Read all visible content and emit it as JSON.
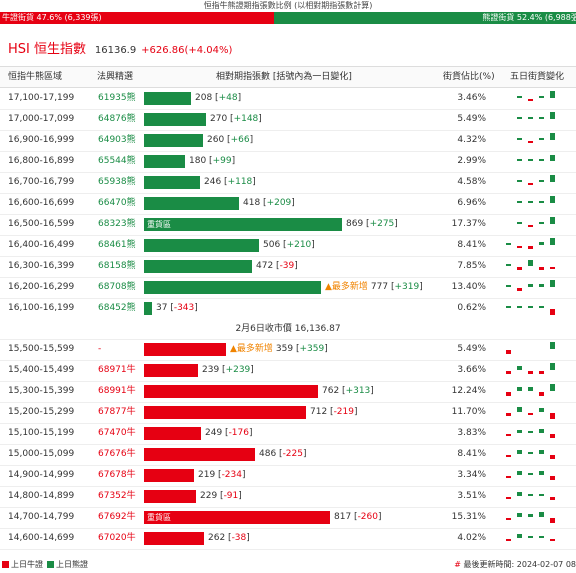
{
  "top_title": "恒指牛熊證期指張數比例 (以相對期指張數計算)",
  "ratio": {
    "bull_label": "牛證街貨 47.6% (6,339張)",
    "bear_label": "熊證街貨 52.4% (6,988張)",
    "bull_pct": 47.6
  },
  "hsi": {
    "name": "HSI 恒生指數",
    "value": "16136.9",
    "change": "+626.86(+4.04%)"
  },
  "headers": {
    "range": "恒指牛熊區域",
    "code": "法興精選",
    "count": "相對期指張數 [括號內為一日變化]",
    "pct": "街貨佔比(%)",
    "five_day": "五日街貨變化"
  },
  "markers": {
    "heavy": "重貨區",
    "new_high": "▲最多新增"
  },
  "bear_rows": [
    {
      "range": "17,100-17,199",
      "code": "61935熊",
      "count": 208,
      "delta": "+48",
      "pct": "3.46%",
      "spark": [
        0,
        0.2,
        -0.3,
        0.3,
        1
      ]
    },
    {
      "range": "17,000-17,099",
      "code": "64876熊",
      "count": 270,
      "delta": "+148",
      "pct": "5.49%",
      "spark": [
        0,
        0.2,
        0.2,
        0.3,
        1
      ]
    },
    {
      "range": "16,900-16,999",
      "code": "64903熊",
      "count": 260,
      "delta": "+66",
      "pct": "4.32%",
      "spark": [
        0,
        0.2,
        -0.2,
        0.2,
        1
      ]
    },
    {
      "range": "16,800-16,899",
      "code": "65544熊",
      "count": 180,
      "delta": "+99",
      "pct": "2.99%",
      "spark": [
        0,
        0.2,
        0.2,
        0.2,
        0.8
      ]
    },
    {
      "range": "16,700-16,799",
      "code": "65938熊",
      "count": 246,
      "delta": "+118",
      "pct": "4.58%",
      "spark": [
        0,
        0.2,
        -0.2,
        0.2,
        1
      ]
    },
    {
      "range": "16,600-16,699",
      "code": "66470熊",
      "count": 418,
      "delta": "+209",
      "pct": "6.96%",
      "spark": [
        0,
        0.2,
        0.2,
        0.3,
        1
      ]
    },
    {
      "range": "16,500-16,599",
      "code": "68323熊",
      "count": 869,
      "delta": "+275",
      "pct": "17.37%",
      "heavy": true,
      "spark": [
        0,
        0.3,
        -0.3,
        0.3,
        1
      ]
    },
    {
      "range": "16,400-16,499",
      "code": "68461熊",
      "count": 506,
      "delta": "+210",
      "pct": "8.41%",
      "spark": [
        0.3,
        -0.3,
        -0.4,
        0.4,
        1
      ]
    },
    {
      "range": "16,300-16,399",
      "code": "68158熊",
      "count": 472,
      "delta": "-39",
      "pct": "7.85%",
      "spark": [
        0.3,
        -0.4,
        0.8,
        -0.4,
        -0.3
      ]
    },
    {
      "range": "16,200-16,299",
      "code": "68708熊",
      "count": 777,
      "delta": "+319",
      "pct": "13.40%",
      "new_high": true,
      "spark": [
        0.3,
        -0.4,
        0.4,
        0.4,
        1
      ]
    },
    {
      "range": "16,100-16,199",
      "code": "68452熊",
      "count": 37,
      "delta": "-343",
      "pct": "0.62%",
      "spark": [
        0.3,
        0.3,
        0.2,
        0.3,
        -0.8
      ]
    }
  ],
  "close_label": "2月6日收市價 16,136.87",
  "bull_rows": [
    {
      "range": "15,500-15,599",
      "code": "-",
      "count": 359,
      "delta": "+359",
      "pct": "5.49%",
      "new_high": true,
      "spark": [
        -0.5,
        0,
        0,
        0,
        1
      ]
    },
    {
      "range": "15,400-15,499",
      "code": "68971牛",
      "count": 239,
      "delta": "+239",
      "pct": "3.66%",
      "spark": [
        -0.4,
        0.6,
        -0.4,
        -0.4,
        1
      ]
    },
    {
      "range": "15,300-15,399",
      "code": "68991牛",
      "count": 762,
      "delta": "+313",
      "pct": "12.24%",
      "spark": [
        -0.5,
        0.5,
        0.5,
        -0.5,
        1
      ]
    },
    {
      "range": "15,200-15,299",
      "code": "67877牛",
      "count": 712,
      "delta": "-219",
      "pct": "11.70%",
      "spark": [
        -0.4,
        0.7,
        -0.3,
        0.6,
        -0.8
      ]
    },
    {
      "range": "15,100-15,199",
      "code": "67470牛",
      "count": 249,
      "delta": "-176",
      "pct": "3.83%",
      "spark": [
        -0.3,
        0.4,
        0.2,
        0.6,
        -0.6
      ]
    },
    {
      "range": "15,000-15,099",
      "code": "67676牛",
      "count": 486,
      "delta": "-225",
      "pct": "8.41%",
      "spark": [
        -0.3,
        0.6,
        0.3,
        0.6,
        -0.6
      ]
    },
    {
      "range": "14,900-14,999",
      "code": "67678牛",
      "count": 219,
      "delta": "-234",
      "pct": "3.34%",
      "spark": [
        -0.3,
        0.5,
        0.2,
        0.5,
        -0.6
      ]
    },
    {
      "range": "14,800-14,899",
      "code": "67352牛",
      "count": 229,
      "delta": "-91",
      "pct": "3.51%",
      "spark": [
        -0.3,
        0.5,
        0.2,
        0.3,
        -0.4
      ]
    },
    {
      "range": "14,700-14,799",
      "code": "67692牛",
      "count": 817,
      "delta": "-260",
      "pct": "15.31%",
      "heavy": true,
      "spark": [
        -0.3,
        0.6,
        0.4,
        0.7,
        -0.7
      ]
    },
    {
      "range": "14,600-14,699",
      "code": "67020牛",
      "count": 262,
      "delta": "-38",
      "pct": "4.02%",
      "spark": [
        -0.3,
        0.5,
        0.3,
        0.3,
        -0.3
      ]
    }
  ],
  "footer": {
    "bull_legend": "上日牛證",
    "bear_legend": "上日熊證",
    "update_label": "最後更新時間: 2024-02-07 08"
  },
  "colors": {
    "bull": "#e60012",
    "bear": "#1a8c45",
    "new_high": "#f08300"
  }
}
